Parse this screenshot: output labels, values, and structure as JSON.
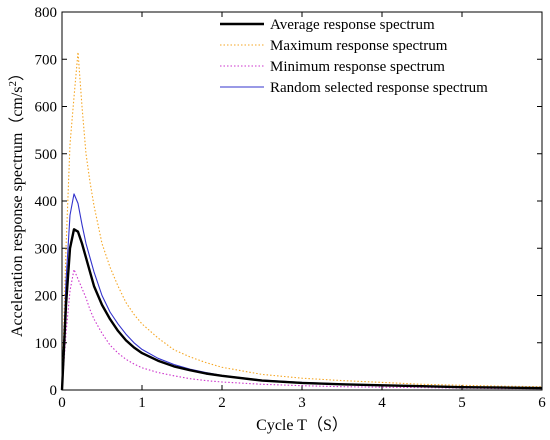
{
  "chart_data": {
    "type": "line",
    "title": "",
    "xlabel": "Cycle T（S）",
    "ylabel": "Acceleration response spectrum（cm/s",
    "ylabel_sup": "2",
    "ylabel_close": "）",
    "xlim": [
      0,
      6
    ],
    "ylim": [
      0,
      800
    ],
    "xticks": [
      0,
      1,
      2,
      3,
      4,
      5,
      6
    ],
    "yticks": [
      0,
      100,
      200,
      300,
      400,
      500,
      600,
      700,
      800
    ],
    "grid": false,
    "legend_position": "top-right",
    "series": [
      {
        "name": "Average response spectrum",
        "color": "#000000",
        "style": "solid",
        "x": [
          0,
          0.05,
          0.1,
          0.15,
          0.2,
          0.25,
          0.3,
          0.35,
          0.4,
          0.5,
          0.6,
          0.7,
          0.8,
          0.9,
          1.0,
          1.2,
          1.4,
          1.6,
          1.8,
          2.0,
          2.5,
          3.0,
          3.5,
          4.0,
          4.5,
          5.0,
          5.5,
          6.0
        ],
        "y": [
          0,
          180,
          300,
          340,
          335,
          310,
          280,
          250,
          220,
          180,
          150,
          125,
          105,
          90,
          78,
          62,
          50,
          42,
          35,
          30,
          20,
          15,
          12,
          10,
          8,
          6,
          5,
          4
        ]
      },
      {
        "name": "Maximum response spectrum",
        "color": "#f5a623",
        "style": "dotted",
        "x": [
          0,
          0.05,
          0.1,
          0.15,
          0.2,
          0.25,
          0.3,
          0.35,
          0.4,
          0.5,
          0.6,
          0.7,
          0.8,
          0.9,
          1.0,
          1.2,
          1.4,
          1.6,
          1.8,
          2.0,
          2.5,
          3.0,
          3.5,
          4.0,
          4.5,
          5.0,
          5.5,
          6.0
        ],
        "y": [
          0,
          300,
          520,
          620,
          715,
          600,
          500,
          440,
          390,
          310,
          260,
          220,
          185,
          160,
          140,
          110,
          85,
          70,
          58,
          48,
          33,
          25,
          20,
          16,
          12,
          10,
          8,
          7
        ]
      },
      {
        "name": "Minimum response spectrum",
        "color": "#cc33cc",
        "style": "dotted",
        "x": [
          0,
          0.05,
          0.1,
          0.15,
          0.2,
          0.25,
          0.3,
          0.35,
          0.4,
          0.5,
          0.6,
          0.7,
          0.8,
          0.9,
          1.0,
          1.2,
          1.4,
          1.6,
          1.8,
          2.0,
          2.5,
          3.0,
          3.5,
          4.0,
          4.5,
          5.0,
          5.5,
          6.0
        ],
        "y": [
          0,
          120,
          210,
          255,
          235,
          215,
          195,
          170,
          150,
          120,
          95,
          78,
          65,
          55,
          47,
          37,
          30,
          24,
          20,
          17,
          12,
          9,
          7,
          6,
          5,
          4,
          3,
          3
        ]
      },
      {
        "name": "Random selected response spectrum",
        "color": "#3333cc",
        "style": "solid",
        "x": [
          0,
          0.05,
          0.1,
          0.15,
          0.2,
          0.25,
          0.3,
          0.35,
          0.4,
          0.5,
          0.6,
          0.7,
          0.8,
          0.9,
          1.0,
          1.2,
          1.4,
          1.6,
          1.8,
          2.0,
          2.5,
          3.0,
          3.5,
          4.0,
          4.5,
          5.0,
          5.5,
          6.0
        ],
        "y": [
          0,
          230,
          370,
          415,
          395,
          350,
          310,
          280,
          250,
          200,
          165,
          140,
          118,
          100,
          86,
          67,
          54,
          44,
          37,
          31,
          21,
          16,
          13,
          10,
          8,
          7,
          5,
          4
        ]
      }
    ]
  }
}
